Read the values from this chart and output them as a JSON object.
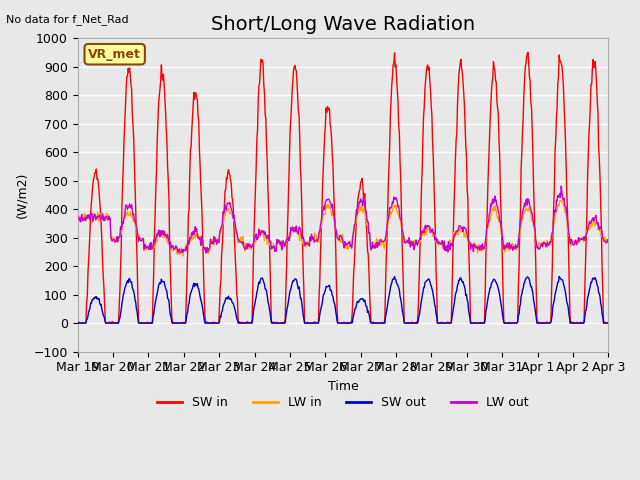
{
  "title": "Short/Long Wave Radiation",
  "ylabel": "(W/m2)",
  "xlabel": "Time",
  "top_left_text": "No data for f_Net_Rad",
  "legend_label_text": "VR_met",
  "ylim": [
    -100,
    1000
  ],
  "yticks": [
    -100,
    0,
    100,
    200,
    300,
    400,
    500,
    600,
    700,
    800,
    900,
    1000
  ],
  "xtick_labels": [
    "Mar 19",
    "Mar 20",
    "Mar 21",
    "Mar 22",
    "Mar 23",
    "Mar 24",
    "Mar 25",
    "Mar 26",
    "Mar 27",
    "Mar 28",
    "Mar 29",
    "Mar 30",
    "Mar 31",
    "Apr 1",
    "Apr 2",
    "Apr 3"
  ],
  "colors": {
    "sw_in": "#FF0000",
    "lw_in": "#FFA500",
    "sw_out": "#0000CC",
    "lw_out": "#CC00CC"
  },
  "line_widths": {
    "sw_in": 1.0,
    "lw_in": 1.0,
    "sw_out": 1.0,
    "lw_out": 1.0
  },
  "legend_entries": [
    "SW in",
    "LW in",
    "SW out",
    "LW out"
  ],
  "background_color": "#E8E8E8",
  "plot_bg_color": "#E8E8E8",
  "grid_color": "#FFFFFF",
  "title_fontsize": 14,
  "axis_fontsize": 9,
  "n_days": 16
}
